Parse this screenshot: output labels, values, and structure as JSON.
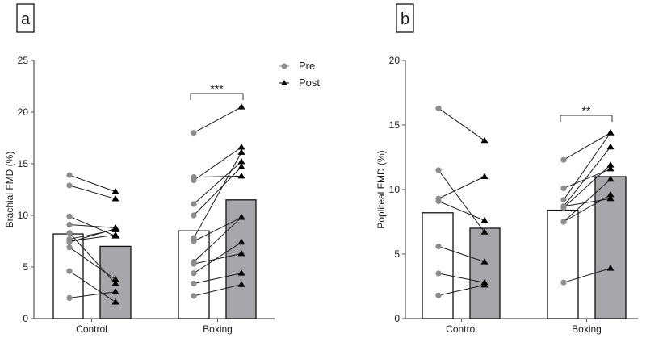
{
  "legend": {
    "pre": "Pre",
    "post": "Post",
    "placement": "top-right of panel a"
  },
  "colors": {
    "pre_point": "#8c8c8c",
    "post_point": "#000000",
    "pre_bar": "#ffffff",
    "post_bar": "#a7a7ab",
    "line": "#1a1a1a"
  },
  "chart_data": [
    {
      "panel": "a",
      "type": "bar",
      "ylabel": "Brachial FMD (%)",
      "ylim": [
        0,
        25
      ],
      "yticks": [
        "0",
        "5",
        "10",
        "15",
        "20",
        "25"
      ],
      "categories": [
        "Control",
        "Boxing"
      ],
      "series": [
        {
          "name": "Pre",
          "values": [
            8.2,
            8.5
          ]
        },
        {
          "name": "Post",
          "values": [
            7.0,
            11.5
          ]
        }
      ],
      "paired": {
        "Control": [
          [
            13.9,
            12.3
          ],
          [
            12.9,
            11.6
          ],
          [
            9.9,
            8.0
          ],
          [
            9.1,
            8.8
          ],
          [
            8.3,
            3.4
          ],
          [
            7.7,
            8.6
          ],
          [
            7.5,
            8.1
          ],
          [
            7.4,
            8.7
          ],
          [
            6.9,
            3.8
          ],
          [
            4.6,
            1.6
          ],
          [
            2.0,
            2.6
          ]
        ],
        "Boxing": [
          [
            18.0,
            20.5
          ],
          [
            13.7,
            13.8
          ],
          [
            13.4,
            16.6
          ],
          [
            11.1,
            15.2
          ],
          [
            10.0,
            14.7
          ],
          [
            7.8,
            16.1
          ],
          [
            7.5,
            9.8
          ],
          [
            5.5,
            9.8
          ],
          [
            5.3,
            6.3
          ],
          [
            4.4,
            7.4
          ],
          [
            3.4,
            4.4
          ],
          [
            2.2,
            3.3
          ]
        ]
      },
      "significance": {
        "category": "Boxing",
        "label": "***"
      }
    },
    {
      "panel": "b",
      "type": "bar",
      "ylabel": "Popliteal FMD (%)",
      "ylim": [
        0,
        20
      ],
      "yticks": [
        "0",
        "5",
        "10",
        "15",
        "20"
      ],
      "categories": [
        "Control",
        "Boxing"
      ],
      "series": [
        {
          "name": "Pre",
          "values": [
            8.2,
            8.4
          ]
        },
        {
          "name": "Post",
          "values": [
            7.0,
            11.0
          ]
        }
      ],
      "paired": {
        "Control": [
          [
            16.3,
            13.8
          ],
          [
            11.5,
            6.7
          ],
          [
            9.3,
            11.0
          ],
          [
            9.1,
            7.6
          ],
          [
            5.6,
            4.4
          ],
          [
            3.5,
            2.8
          ],
          [
            1.8,
            2.6
          ]
        ],
        "Boxing": [
          [
            12.3,
            14.4
          ],
          [
            10.1,
            11.6
          ],
          [
            9.2,
            14.4
          ],
          [
            8.7,
            13.3
          ],
          [
            8.6,
            11.9
          ],
          [
            8.7,
            9.3
          ],
          [
            7.5,
            10.8
          ],
          [
            7.5,
            9.6
          ],
          [
            2.8,
            3.9
          ]
        ]
      },
      "significance": {
        "category": "Boxing",
        "label": "**"
      }
    }
  ]
}
